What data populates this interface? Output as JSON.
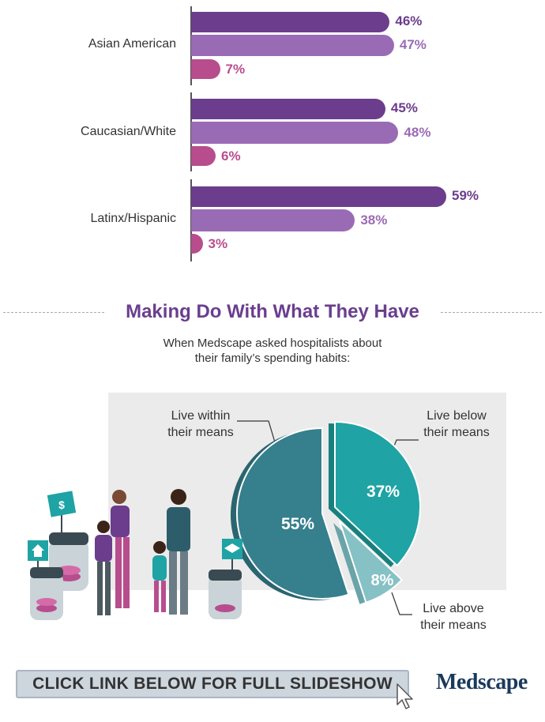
{
  "chart_data": [
    {
      "type": "bar",
      "orientation": "horizontal",
      "categories": [
        "Asian American",
        "Caucasian/White",
        "Latinx/Hispanic"
      ],
      "series": [
        {
          "values": [
            46,
            45,
            59
          ],
          "color": "#6b3d8c"
        },
        {
          "values": [
            47,
            48,
            38
          ],
          "color": "#9a6bb5"
        },
        {
          "values": [
            7,
            6,
            3
          ],
          "color": "#b84d8e"
        }
      ],
      "value_labels": [
        [
          "46%",
          "47%",
          "7%"
        ],
        [
          "45%",
          "48%",
          "6%"
        ],
        [
          "59%",
          "38%",
          "3%"
        ]
      ],
      "xlim": [
        0,
        60
      ]
    },
    {
      "type": "pie",
      "title": "Making Do With What They Have",
      "subtitle_lines": [
        "When Medscape asked hospitalists about",
        "their family’s spending habits:"
      ],
      "slices": [
        {
          "label_lines": [
            "Live within",
            "their means"
          ],
          "value": 55,
          "value_label": "55%",
          "color": "#367f8d"
        },
        {
          "label_lines": [
            "Live below",
            "their means"
          ],
          "value": 37,
          "value_label": "37%",
          "color": "#1fa3a4"
        },
        {
          "label_lines": [
            "Live above",
            "their means"
          ],
          "value": 8,
          "value_label": "8%",
          "color": "#86c1c5"
        }
      ]
    }
  ],
  "footer": {
    "cta_label": "CLICK LINK BELOW FOR FULL SLIDESHOW",
    "logo_text": "Medscape"
  },
  "icons": [
    "cursor-arrow-icon",
    "dollar-sign-icon",
    "house-icon",
    "graduation-cap-icon"
  ]
}
